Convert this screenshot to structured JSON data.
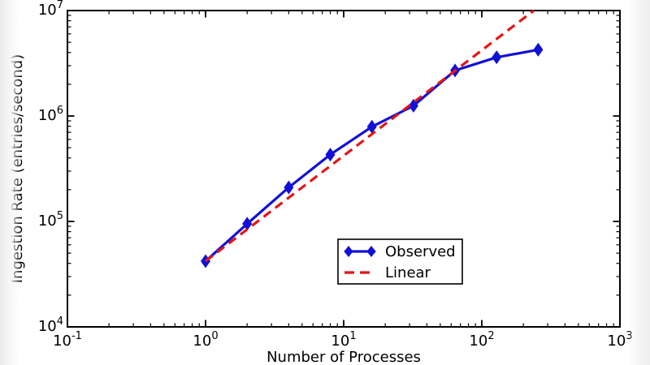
{
  "chart_data": {
    "type": "line",
    "title": "",
    "xlabel": "Number of Processes",
    "ylabel": "Ingestion Rate (entries/second)",
    "xscale": "log",
    "yscale": "log",
    "xlim": [
      0.1,
      1000
    ],
    "ylim": [
      10000,
      10000000
    ],
    "grid": false,
    "x_ticks": [
      {
        "value": 0.1,
        "base": "10",
        "exp": "-1"
      },
      {
        "value": 1,
        "base": "10",
        "exp": "0"
      },
      {
        "value": 10,
        "base": "10",
        "exp": "1"
      },
      {
        "value": 100,
        "base": "10",
        "exp": "2"
      },
      {
        "value": 1000,
        "base": "10",
        "exp": "3"
      }
    ],
    "y_ticks": [
      {
        "value": 10000,
        "base": "10",
        "exp": "4"
      },
      {
        "value": 100000,
        "base": "10",
        "exp": "5"
      },
      {
        "value": 1000000,
        "base": "10",
        "exp": "6"
      },
      {
        "value": 10000000,
        "base": "10",
        "exp": "7"
      }
    ],
    "series": [
      {
        "name": "Observed",
        "color": "#1010d8",
        "style": "solid",
        "marker": "diamond",
        "x": [
          1,
          2,
          4,
          8,
          16,
          32,
          64,
          128,
          256
        ],
        "y": [
          42000,
          95000,
          210000,
          430000,
          790000,
          1250000,
          2700000,
          3600000,
          4250000
        ]
      },
      {
        "name": "Linear",
        "color": "#e51515",
        "style": "dashed",
        "marker": "none",
        "equation": "rate = 42000 x processes",
        "x": [
          1,
          238.1
        ],
        "y": [
          42000,
          10000000
        ]
      }
    ],
    "legend": {
      "position": "lower center",
      "labels": [
        "Observed",
        "Linear"
      ]
    }
  }
}
